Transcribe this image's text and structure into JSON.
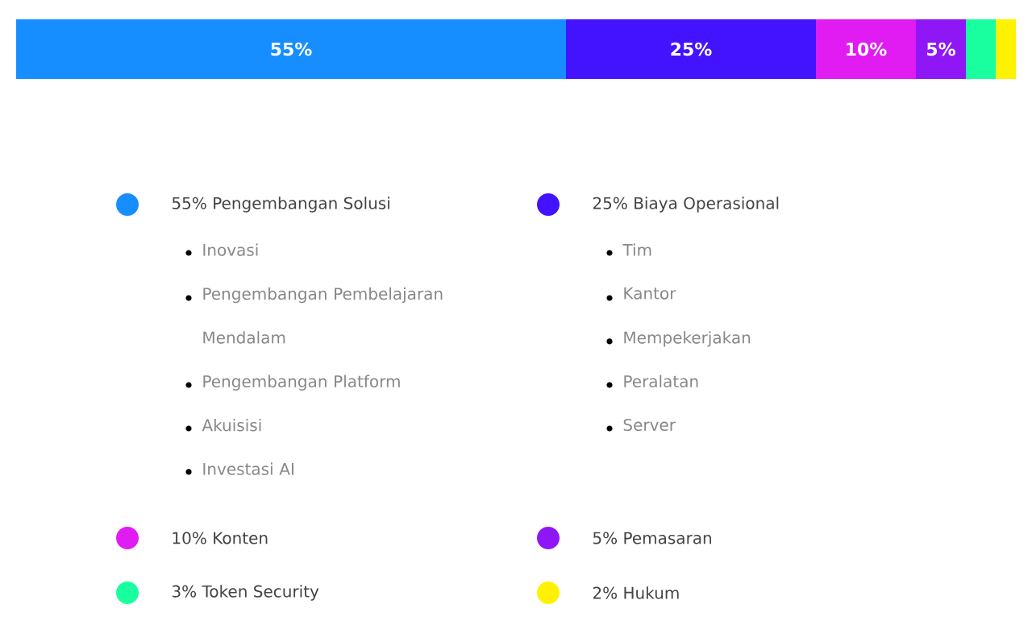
{
  "chart_data": {
    "type": "bar",
    "orientation": "horizontal",
    "stacked": true,
    "categories": [
      null
    ],
    "legend": "bottom",
    "series": [
      {
        "name": "55% Pengembangan Solusi",
        "color": "#168eff",
        "values": [
          55
        ],
        "value_labels": [
          "55%"
        ]
      },
      {
        "name": "25% Biaya Operasional",
        "color": "#4313ff",
        "values": [
          25
        ],
        "value_labels": [
          "25%"
        ]
      },
      {
        "name": "10% Konten",
        "color": "#e01cf2",
        "values": [
          10
        ],
        "value_labels": [
          "10%"
        ]
      },
      {
        "name": "5% Pemasaran",
        "color": "#8f17f5",
        "values": [
          5
        ],
        "value_labels": [
          "5%"
        ]
      },
      {
        "name": "3% Token Security",
        "color": "#19ffa0",
        "values": [
          3
        ],
        "value_labels": [
          null
        ]
      },
      {
        "name": "2% Hukum",
        "color": "#fff200",
        "values": [
          2
        ],
        "value_labels": [
          null
        ]
      }
    ],
    "annotations": [
      "Inovasi",
      "Pengembangan Pembelajaran Mendalam",
      "Pengembangan Platform",
      "Akuisisi",
      "Investasi AI",
      "Tim",
      "Kantor",
      "Mempekerjakan",
      "Peralatan",
      "Server"
    ]
  }
}
